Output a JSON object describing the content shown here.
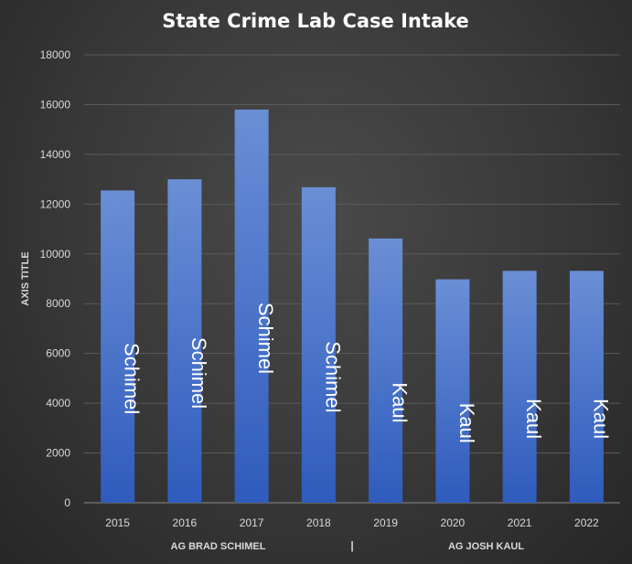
{
  "chart_data": {
    "type": "bar",
    "title": "State Crime Lab Case Intake",
    "ylabel": "AXIS TITLE",
    "xlabel": "",
    "categories": [
      "2015",
      "2016",
      "2017",
      "2018",
      "2019",
      "2020",
      "2021",
      "2022"
    ],
    "values": [
      12550,
      13000,
      15800,
      12680,
      10620,
      8980,
      9320,
      9320
    ],
    "bar_labels": [
      "Schimel",
      "Schimel",
      "Schimel",
      "Schimel",
      "Kaul",
      "Kaul",
      "Kaul",
      "Kaul"
    ],
    "ylim": [
      0,
      18000
    ],
    "yticks": [
      0,
      2000,
      4000,
      6000,
      8000,
      10000,
      12000,
      14000,
      16000,
      18000
    ],
    "grid": true,
    "group_labels": [
      "AG BRAD SCHIMEL",
      "AG JOSH KAUL"
    ],
    "group_separator": "|",
    "colors": {
      "bar_top": "#6a8fd6",
      "bar_bottom": "#2f5bbd",
      "text": "#ffffff",
      "tick_text": "#d9d9d9",
      "grid": "#5a5a5a"
    }
  }
}
